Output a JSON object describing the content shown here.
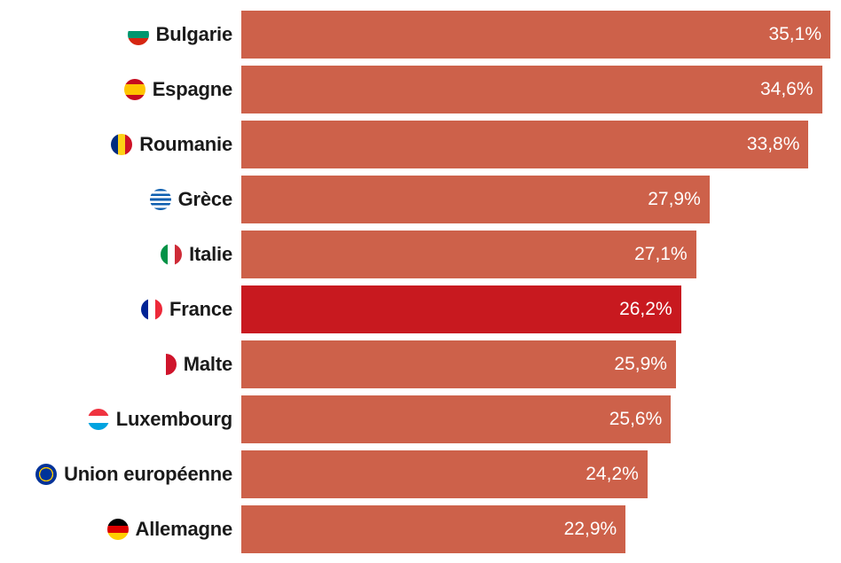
{
  "chart_data": {
    "type": "bar",
    "orientation": "horizontal",
    "categories": [
      "Bulgarie",
      "Espagne",
      "Roumanie",
      "Grèce",
      "Italie",
      "France",
      "Malte",
      "Luxembourg",
      "Union européenne",
      "Allemagne"
    ],
    "flags": [
      "bulgaria-flag-icon",
      "spain-flag-icon",
      "romania-flag-icon",
      "greece-flag-icon",
      "italy-flag-icon",
      "france-flag-icon",
      "malta-flag-icon",
      "luxembourg-flag-icon",
      "eu-flag-icon",
      "germany-flag-icon"
    ],
    "values": [
      35.1,
      34.6,
      33.8,
      27.9,
      27.1,
      26.2,
      25.9,
      25.6,
      24.2,
      22.9
    ],
    "value_labels": [
      "35,1%",
      "34,6%",
      "33,8%",
      "27,9%",
      "27,1%",
      "26,2%",
      "25,9%",
      "25,6%",
      "24,2%",
      "22,9%"
    ],
    "highlight": "France",
    "colors": {
      "bar": "#CD614A",
      "highlight": "#C8191F"
    },
    "xlim": [
      0,
      35.1
    ]
  }
}
